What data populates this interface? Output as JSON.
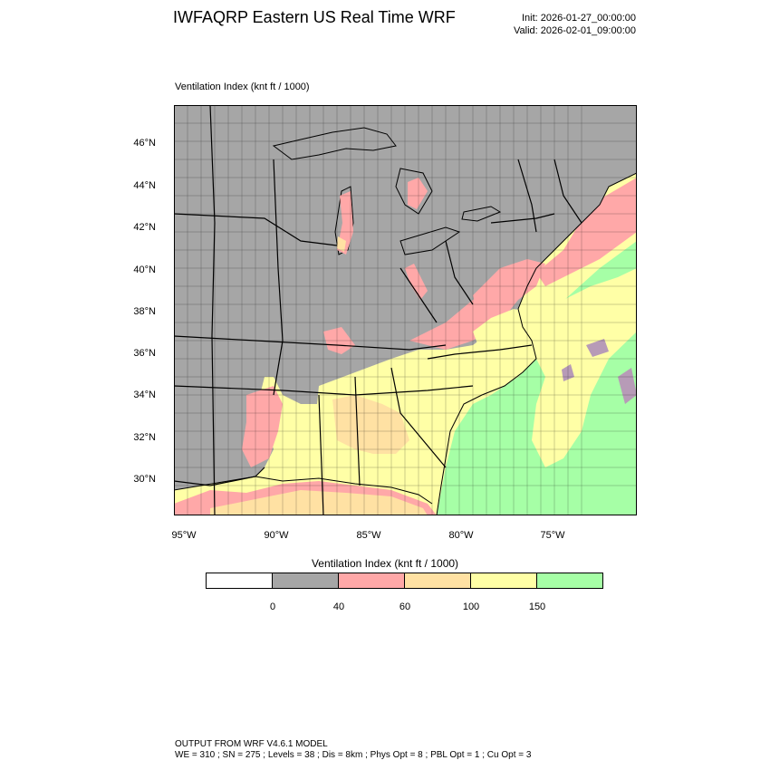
{
  "header": {
    "title": "IWFAQRP Eastern US Real Time WRF",
    "init": "Init: 2026-01-27_00:00:00",
    "valid": "Valid: 2026-02-01_09:00:00"
  },
  "field": {
    "label": "Ventilation Index   (knt ft / 1000)"
  },
  "axes": {
    "lat_labels": [
      "46°N",
      "44°N",
      "42°N",
      "40°N",
      "38°N",
      "36°N",
      "34°N",
      "32°N",
      "30°N"
    ],
    "lon_labels": [
      "95°W",
      "90°W",
      "85°W",
      "80°W",
      "75°W"
    ]
  },
  "colorbar": {
    "title": "Ventilation Index  (knt ft / 1000)",
    "colors": [
      "#ffffff",
      "#a6a6a6",
      "#ffa8a8",
      "#ffe1a3",
      "#ffffa6",
      "#a6ffa6"
    ],
    "tick_labels": [
      "0",
      "40",
      "60",
      "100",
      "150"
    ]
  },
  "palette": {
    "gray": "#a6a6a6",
    "pink": "#ffa8a8",
    "tan": "#ffe1a3",
    "yellow": "#ffffa6",
    "green": "#a6ffa6",
    "mauve": "#b79bb7"
  },
  "footer": {
    "line1": "OUTPUT FROM WRF V4.6.1 MODEL",
    "line2": "WE = 310 ; SN = 275 ; Levels = 38 ; Dis = 8km ; Phys Opt = 8 ; PBL Opt = 1 ; Cu Opt = 3"
  }
}
